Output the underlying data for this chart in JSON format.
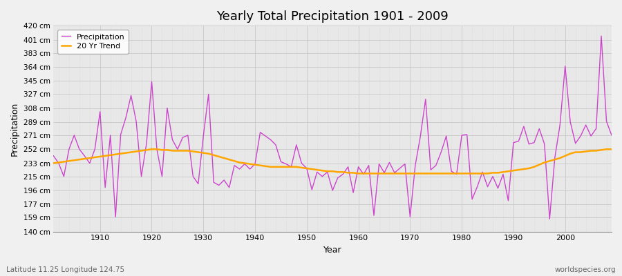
{
  "title": "Yearly Total Precipitation 1901 - 2009",
  "xlabel": "Year",
  "ylabel": "Precipitation",
  "subtitle": "Latitude 11.25 Longitude 124.75",
  "watermark": "worldspecies.org",
  "line_color": "#CC44CC",
  "trend_color": "#FFA500",
  "background_color": "#F0F0F0",
  "plot_bg_color": "#E8E8E8",
  "ytick_labels": [
    "140 cm",
    "159 cm",
    "177 cm",
    "196 cm",
    "215 cm",
    "233 cm",
    "252 cm",
    "271 cm",
    "289 cm",
    "308 cm",
    "327 cm",
    "345 cm",
    "364 cm",
    "383 cm",
    "401 cm",
    "420 cm"
  ],
  "ytick_values": [
    140,
    159,
    177,
    196,
    215,
    233,
    252,
    271,
    289,
    308,
    327,
    345,
    364,
    383,
    401,
    420
  ],
  "ylim": [
    140,
    420
  ],
  "xlim": [
    1901,
    2009
  ],
  "years": [
    1901,
    1902,
    1903,
    1904,
    1905,
    1906,
    1907,
    1908,
    1909,
    1910,
    1911,
    1912,
    1913,
    1914,
    1915,
    1916,
    1917,
    1918,
    1919,
    1920,
    1921,
    1922,
    1923,
    1924,
    1925,
    1926,
    1927,
    1928,
    1929,
    1930,
    1931,
    1932,
    1933,
    1934,
    1935,
    1936,
    1937,
    1938,
    1939,
    1940,
    1941,
    1942,
    1943,
    1944,
    1945,
    1946,
    1947,
    1948,
    1949,
    1950,
    1951,
    1952,
    1953,
    1954,
    1955,
    1956,
    1957,
    1958,
    1959,
    1960,
    1961,
    1962,
    1963,
    1964,
    1965,
    1966,
    1967,
    1968,
    1969,
    1970,
    1971,
    1972,
    1973,
    1974,
    1975,
    1976,
    1977,
    1978,
    1979,
    1980,
    1981,
    1982,
    1983,
    1984,
    1985,
    1986,
    1987,
    1988,
    1989,
    1990,
    1991,
    1992,
    1993,
    1994,
    1995,
    1996,
    1997,
    1998,
    1999,
    2000,
    2001,
    2002,
    2003,
    2004,
    2005,
    2006,
    2007,
    2008,
    2009
  ],
  "precip": [
    243,
    233,
    215,
    252,
    271,
    252,
    243,
    233,
    252,
    303,
    200,
    271,
    160,
    272,
    295,
    325,
    290,
    215,
    260,
    344,
    252,
    215,
    308,
    265,
    252,
    268,
    271,
    215,
    205,
    270,
    327,
    207,
    203,
    210,
    200,
    230,
    225,
    232,
    225,
    232,
    275,
    270,
    265,
    258,
    235,
    232,
    228,
    258,
    233,
    226,
    197,
    221,
    215,
    221,
    196,
    213,
    218,
    228,
    193,
    228,
    218,
    230,
    162,
    232,
    220,
    234,
    220,
    226,
    232,
    160,
    230,
    270,
    320,
    224,
    230,
    248,
    270,
    222,
    218,
    271,
    272,
    184,
    201,
    221,
    201,
    215,
    199,
    218,
    182,
    261,
    263,
    283,
    259,
    261,
    280,
    259,
    157,
    240,
    285,
    365,
    289,
    260,
    270,
    285,
    270,
    280,
    406,
    290,
    271
  ],
  "trend": [
    233,
    234,
    235,
    236,
    237,
    238,
    239,
    240,
    241,
    242,
    243,
    244,
    245,
    246,
    247,
    248,
    249,
    250,
    251,
    252,
    252,
    251,
    251,
    250,
    250,
    250,
    250,
    249,
    248,
    247,
    246,
    244,
    242,
    240,
    238,
    236,
    234,
    233,
    232,
    231,
    230,
    229,
    228,
    228,
    228,
    228,
    228,
    228,
    227,
    226,
    225,
    224,
    223,
    222,
    222,
    221,
    221,
    220,
    220,
    219,
    219,
    219,
    219,
    219,
    219,
    219,
    219,
    219,
    219,
    219,
    219,
    219,
    219,
    219,
    219,
    219,
    219,
    219,
    219,
    219,
    219,
    219,
    219,
    219,
    219,
    220,
    220,
    221,
    222,
    223,
    224,
    225,
    226,
    228,
    231,
    234,
    236,
    238,
    240,
    243,
    246,
    248,
    248,
    249,
    250,
    250,
    251,
    252,
    252
  ]
}
